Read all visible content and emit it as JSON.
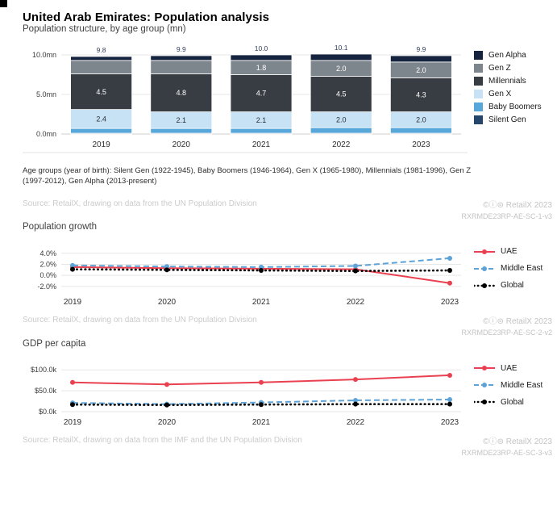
{
  "page": {
    "title": "United Arab Emirates: Population analysis"
  },
  "sections": [
    {
      "title": "Population structure, by age group (mn)",
      "footnote": "Age groups (year of birth): Silent Gen (1922-1945), Baby Boomers (1946-1964), Gen X (1965-1980), Millennials (1981-1996), Gen Z (1997-2012), Gen Alpha (2013-present)",
      "source": "Source: RetailX, drawing on data from the UN Population Division",
      "copyright": "©ⓘ⊜ RetailX 2023",
      "ref_code": "RXRMDE23RP-AE-SC-1-v3"
    },
    {
      "title": "Population growth",
      "source": "Source: RetailX, drawing on data from the UN Population Division",
      "copyright": "©ⓘ⊜ RetailX 2023",
      "ref_code": "RXRMDE23RP-AE-SC-2-v2"
    },
    {
      "title": "GDP per capita",
      "source": "Source: RetailX, drawing on data from the IMF and the UN Population Division",
      "copyright": "©ⓘ⊜ RetailX 2023",
      "ref_code": "RXRMDE23RP-AE-SC-3-v3"
    }
  ],
  "chart_data": [
    {
      "type": "bar",
      "stacked": true,
      "title": "Population structure, by age group (mn)",
      "categories": [
        "2019",
        "2020",
        "2021",
        "2022",
        "2023"
      ],
      "series": [
        {
          "name": "Silent Gen",
          "color": "#24466b",
          "values": [
            0.1,
            0.1,
            0.1,
            0.1,
            0.1
          ]
        },
        {
          "name": "Baby Boomers",
          "color": "#57a7db",
          "values": [
            0.6,
            0.6,
            0.6,
            0.7,
            0.7
          ]
        },
        {
          "name": "Gen X",
          "color": "#c7e2f4",
          "values": [
            2.4,
            2.1,
            2.1,
            2.0,
            2.0
          ],
          "label_color": "#2b3038"
        },
        {
          "name": "Millennials",
          "color": "#383d43",
          "values": [
            4.5,
            4.8,
            4.7,
            4.5,
            4.3
          ]
        },
        {
          "name": "Gen Z",
          "color": "#7e868d",
          "values": [
            1.7,
            1.7,
            1.8,
            2.0,
            2.0
          ]
        },
        {
          "name": "Gen Alpha",
          "color": "#16243f",
          "values": [
            0.5,
            0.6,
            0.7,
            0.8,
            0.8
          ]
        }
      ],
      "totals": [
        9.8,
        9.9,
        10.0,
        10.1,
        9.9
      ],
      "label_min": 1.8,
      "legend_order": [
        "Gen Alpha",
        "Gen Z",
        "Millennials",
        "Gen X",
        "Baby Boomers",
        "Silent Gen"
      ],
      "ylim": [
        0,
        10
      ],
      "y_ticks": [
        {
          "v": 10,
          "label": "10.0mn"
        },
        {
          "v": 5,
          "label": "5.0mn"
        },
        {
          "v": 0,
          "label": "0.0mn"
        }
      ],
      "legend_position": "right",
      "grid": true
    },
    {
      "type": "line",
      "title": "Population growth",
      "x": [
        "2019",
        "2020",
        "2021",
        "2022",
        "2023"
      ],
      "series": [
        {
          "name": "UAE",
          "color": "#ea4150",
          "style": "solid",
          "values": [
            1.5,
            1.3,
            1.2,
            1.1,
            -1.4
          ]
        },
        {
          "name": "Middle East",
          "color": "#5ea3d8",
          "style": "dashed",
          "values": [
            1.8,
            1.6,
            1.5,
            1.7,
            3.1
          ]
        },
        {
          "name": "Global",
          "color": "#000000",
          "style": "dotted",
          "values": [
            1.1,
            1.0,
            0.9,
            0.8,
            0.9
          ]
        }
      ],
      "ylim": [
        -2.9,
        4.7
      ],
      "y_ticks": [
        {
          "v": 4,
          "label": "4.0%"
        },
        {
          "v": 2,
          "label": "2.0%"
        },
        {
          "v": 0,
          "label": "0.0%"
        },
        {
          "v": -2,
          "label": "-2.0%"
        }
      ],
      "legend_position": "right",
      "grid": true
    },
    {
      "type": "line",
      "title": "GDP per capita",
      "x": [
        "2019",
        "2020",
        "2021",
        "2022",
        "2023"
      ],
      "series": [
        {
          "name": "UAE",
          "color": "#ea4150",
          "style": "solid",
          "values": [
            70,
            65,
            70,
            77,
            87
          ]
        },
        {
          "name": "Middle East",
          "color": "#5ea3d8",
          "style": "dashed",
          "values": [
            21,
            18,
            22,
            27,
            29
          ]
        },
        {
          "name": "Global",
          "color": "#000000",
          "style": "dotted",
          "values": [
            17,
            16,
            17,
            18,
            18
          ]
        }
      ],
      "ylim": [
        0,
        112
      ],
      "y_ticks": [
        {
          "v": 100,
          "label": "$100.0k"
        },
        {
          "v": 50,
          "label": "$50.0k"
        },
        {
          "v": 0,
          "label": "$0.0k"
        }
      ],
      "legend_position": "right",
      "grid": true
    }
  ]
}
